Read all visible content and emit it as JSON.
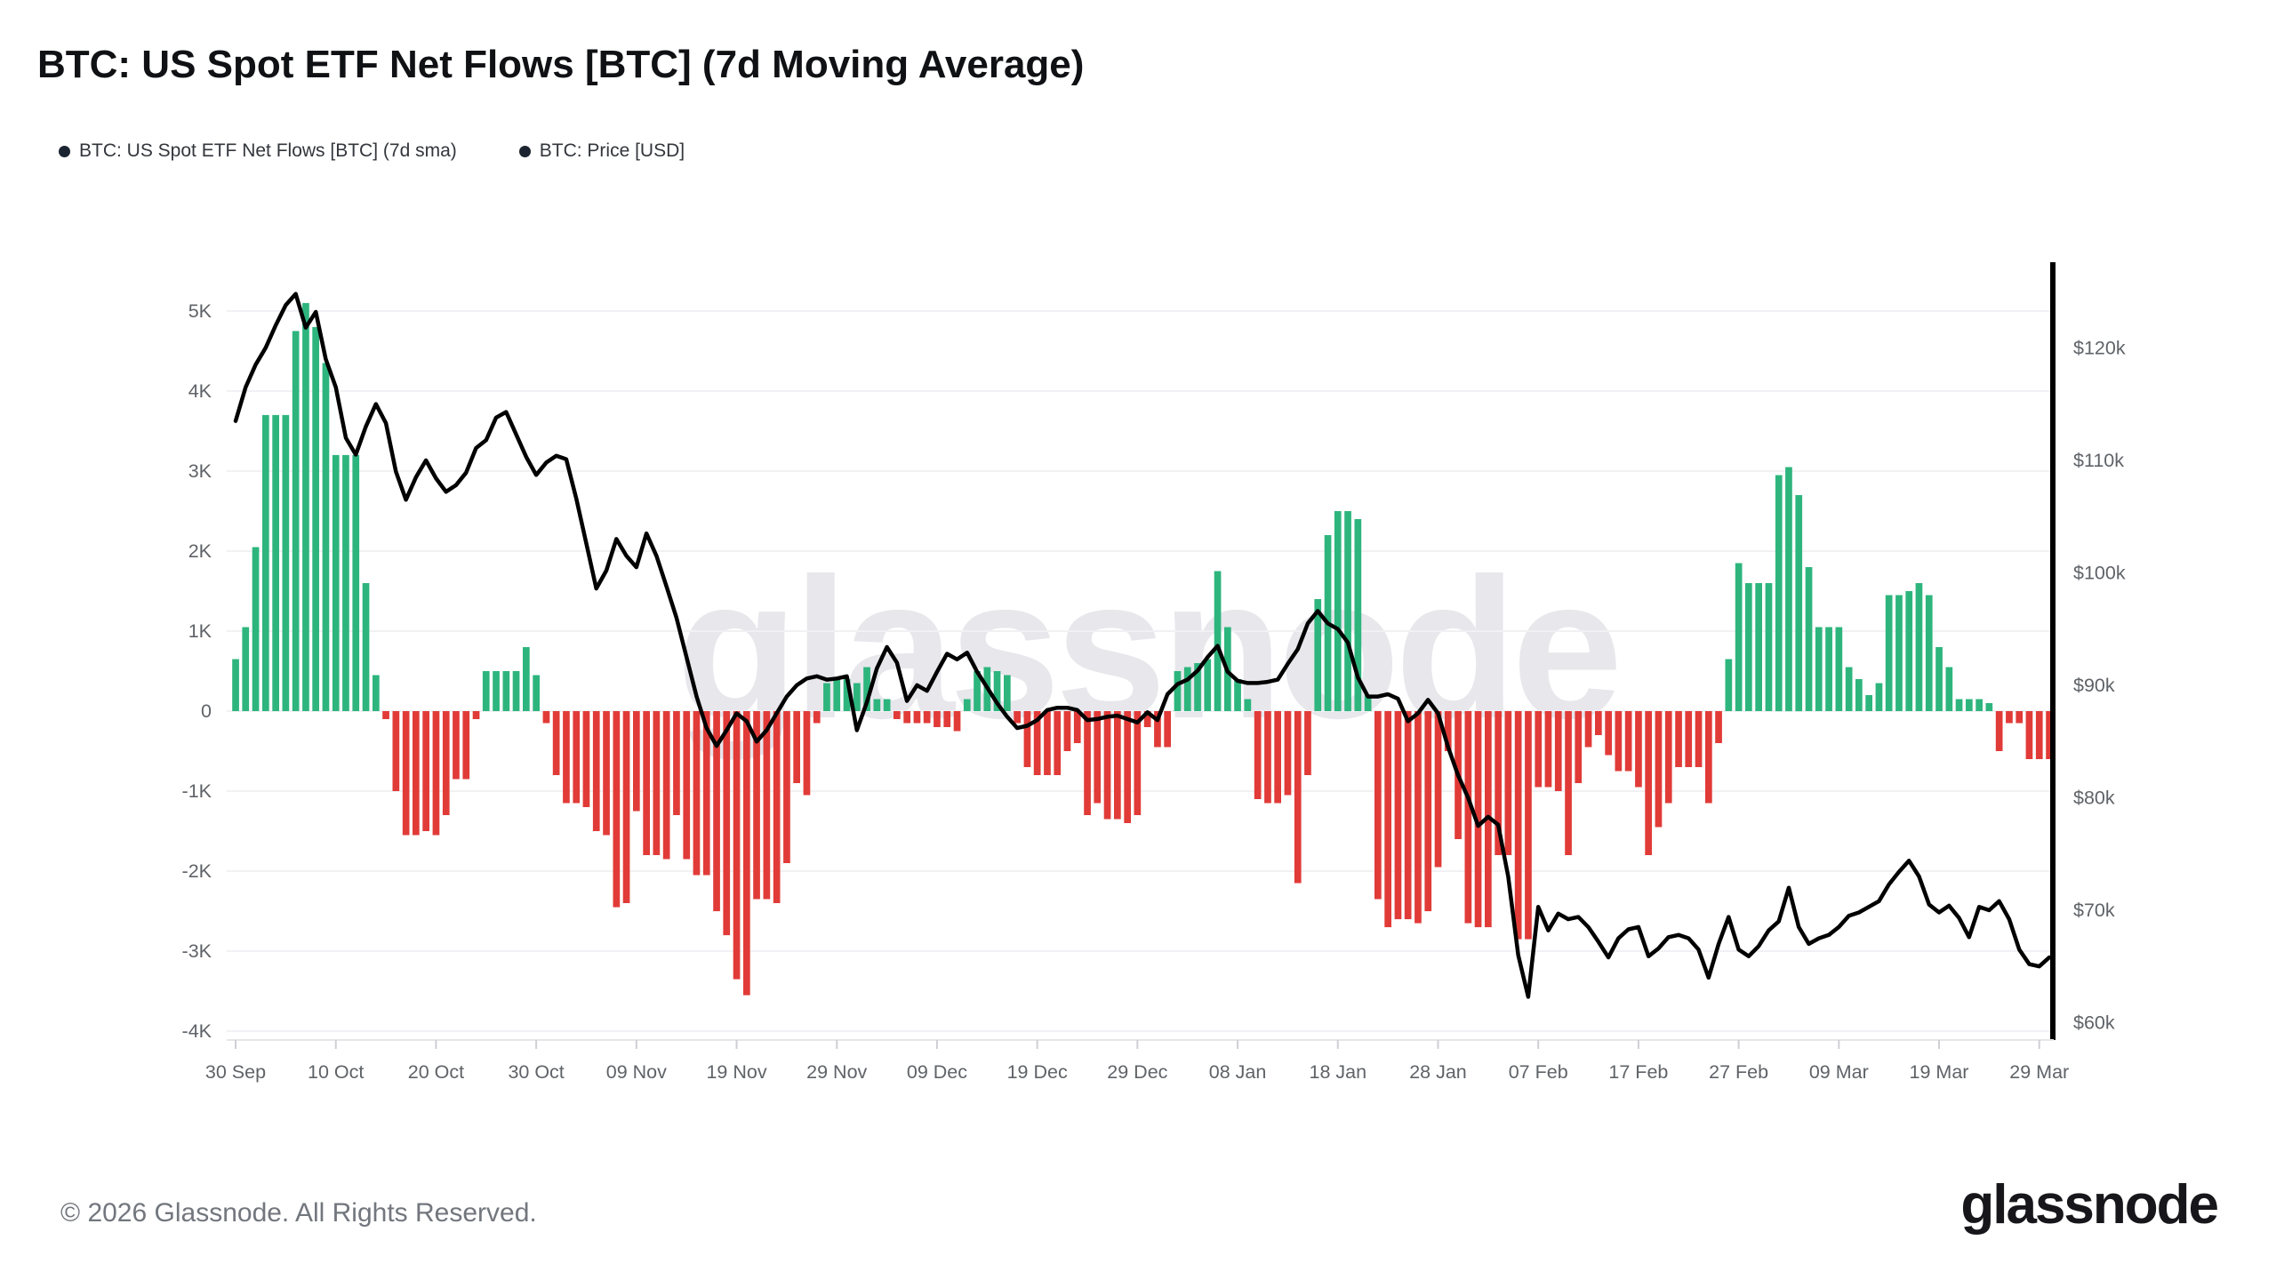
{
  "header": {
    "title": "BTC: US Spot ETF Net Flows [BTC] (7d Moving Average)",
    "legend": [
      {
        "label": "BTC: US Spot ETF Net Flows [BTC] (7d sma)",
        "dot_color": "#1b2430"
      },
      {
        "label": "BTC: Price [USD]",
        "dot_color": "#0d0d0f"
      }
    ]
  },
  "watermark": {
    "text": "glassnode"
  },
  "footer": {
    "copyright": "© 2026 Glassnode. All Rights Reserved.",
    "brand": "glassnode"
  },
  "chart_data": {
    "type": "bar+line",
    "title": "BTC: US Spot ETF Net Flows [BTC] (7d Moving Average)",
    "x_start_label": "30 Sep",
    "x_end_label": "29 Mar",
    "x_tick_labels": [
      "30 Sep",
      "10 Oct",
      "20 Oct",
      "30 Oct",
      "09 Nov",
      "19 Nov",
      "29 Nov",
      "09 Dec",
      "19 Dec",
      "29 Dec",
      "08 Jan",
      "18 Jan",
      "28 Jan",
      "07 Feb",
      "17 Feb",
      "27 Feb",
      "09 Mar",
      "19 Mar",
      "29 Mar"
    ],
    "x_tick_indices": [
      0,
      10,
      20,
      30,
      40,
      50,
      60,
      70,
      80,
      90,
      100,
      110,
      120,
      130,
      140,
      150,
      160,
      170,
      180
    ],
    "left_axis": {
      "tick_labels": [
        "5K",
        "4K",
        "3K",
        "2K",
        "1K",
        "0",
        "-1K",
        "-2K",
        "-3K",
        "-4K"
      ],
      "tick_values": [
        5,
        4,
        3,
        2,
        1,
        0,
        -1,
        -2,
        -3,
        -4
      ],
      "range": [
        -4.11,
        5.61
      ],
      "unit": "K BTC (net flow, 7d sma)"
    },
    "right_axis": {
      "tick_labels": [
        "$120k",
        "$110k",
        "$100k",
        "$90k",
        "$80k",
        "$70k",
        "$60k"
      ],
      "tick_values": [
        120,
        110,
        100,
        90,
        80,
        70,
        60
      ],
      "price_at_zero_flow": 87.7,
      "price_per_flow_unit": 7.115,
      "unit": "USD (thousands)"
    },
    "grid": "horizontal-only",
    "legend_position": "top-left",
    "colors": {
      "positive_bar": "#2db57d",
      "negative_bar": "#e13b38",
      "price_line": "#000000",
      "gridline": "#f1f1f4",
      "axis_text": "#5f6368",
      "axis_line": "#e6e6ea",
      "tick_mark": "#cfcfd4",
      "right_axis_bar": "#000000"
    },
    "series": [
      {
        "name": "BTC: US Spot ETF Net Flows [BTC] (7d sma)",
        "type": "bar",
        "axis": "left",
        "values": [
          0.65,
          1.05,
          2.05,
          3.7,
          3.7,
          3.7,
          4.75,
          5.1,
          4.8,
          4.35,
          3.2,
          3.2,
          3.2,
          1.6,
          0.45,
          -0.1,
          -1.0,
          -1.55,
          -1.55,
          -1.5,
          -1.55,
          -1.3,
          -0.85,
          -0.85,
          -0.1,
          0.5,
          0.5,
          0.5,
          0.5,
          0.8,
          0.45,
          -0.15,
          -0.8,
          -1.15,
          -1.15,
          -1.2,
          -1.5,
          -1.55,
          -2.45,
          -2.4,
          -1.25,
          -1.8,
          -1.8,
          -1.85,
          -1.3,
          -1.85,
          -2.05,
          -2.05,
          -2.5,
          -2.8,
          -3.35,
          -3.55,
          -2.35,
          -2.35,
          -2.4,
          -1.9,
          -0.9,
          -1.05,
          -0.15,
          0.35,
          0.4,
          0.4,
          0.35,
          0.55,
          0.15,
          0.15,
          -0.1,
          -0.15,
          -0.15,
          -0.15,
          -0.2,
          -0.2,
          -0.25,
          0.15,
          0.5,
          0.55,
          0.5,
          0.45,
          -0.15,
          -0.7,
          -0.8,
          -0.8,
          -0.8,
          -0.5,
          -0.4,
          -1.3,
          -1.15,
          -1.35,
          -1.35,
          -1.4,
          -1.3,
          -0.2,
          -0.45,
          -0.45,
          0.5,
          0.55,
          0.6,
          0.65,
          1.75,
          1.05,
          0.4,
          0.15,
          -1.1,
          -1.15,
          -1.15,
          -1.05,
          -2.15,
          -0.8,
          1.4,
          2.2,
          2.5,
          2.5,
          2.4,
          0.2,
          -2.35,
          -2.7,
          -2.6,
          -2.6,
          -2.65,
          -2.5,
          -1.95,
          -0.5,
          -1.6,
          -2.65,
          -2.7,
          -2.7,
          -1.8,
          -1.8,
          -2.85,
          -2.85,
          -0.95,
          -0.95,
          -1.0,
          -1.8,
          -0.9,
          -0.45,
          -0.3,
          -0.55,
          -0.75,
          -0.75,
          -0.95,
          -1.8,
          -1.45,
          -1.15,
          -0.7,
          -0.7,
          -0.7,
          -1.15,
          -0.4,
          0.65,
          1.85,
          1.6,
          1.6,
          1.6,
          2.95,
          3.05,
          2.7,
          1.8,
          1.05,
          1.05,
          1.05,
          0.55,
          0.4,
          0.2,
          0.35,
          1.45,
          1.45,
          1.5,
          1.6,
          1.45,
          0.8,
          0.55,
          0.15,
          0.15,
          0.15,
          0.1,
          -0.5,
          -0.15,
          -0.15,
          -0.6,
          -0.6,
          -0.6
        ]
      },
      {
        "name": "BTC: Price [USD]",
        "type": "line",
        "axis": "right",
        "values": [
          113.5,
          116.5,
          118.5,
          120.0,
          122.0,
          123.8,
          124.8,
          121.8,
          123.2,
          119.0,
          116.5,
          112.0,
          110.5,
          113.0,
          115.0,
          113.3,
          109.0,
          106.5,
          108.5,
          110.0,
          108.4,
          107.2,
          107.8,
          108.9,
          111.1,
          111.8,
          113.8,
          114.3,
          112.3,
          110.3,
          108.7,
          109.8,
          110.4,
          110.1,
          106.6,
          102.6,
          98.6,
          100.2,
          103.0,
          101.5,
          100.5,
          103.5,
          101.5,
          98.8,
          96.0,
          92.5,
          89.0,
          86.2,
          84.6,
          86.0,
          87.5,
          86.8,
          85.0,
          86.0,
          87.5,
          89.0,
          90.0,
          90.6,
          90.8,
          90.5,
          90.6,
          90.8,
          86.0,
          88.5,
          91.5,
          93.4,
          92.0,
          88.6,
          90.0,
          89.5,
          91.2,
          92.8,
          92.3,
          92.9,
          91.2,
          89.8,
          88.4,
          87.2,
          86.2,
          86.4,
          86.9,
          87.8,
          88.0,
          88.0,
          87.8,
          86.9,
          87.0,
          87.2,
          87.3,
          87.0,
          86.7,
          87.6,
          86.9,
          89.2,
          90.1,
          90.5,
          91.3,
          92.5,
          93.5,
          91.2,
          90.4,
          90.2,
          90.2,
          90.3,
          90.5,
          91.9,
          93.2,
          95.5,
          96.6,
          95.5,
          95.0,
          93.8,
          90.7,
          89.0,
          89.0,
          89.2,
          88.8,
          86.8,
          87.5,
          88.7,
          87.5,
          84.5,
          82.0,
          80.0,
          77.5,
          78.3,
          77.6,
          73.0,
          66.0,
          62.3,
          70.3,
          68.2,
          69.7,
          69.2,
          69.4,
          68.5,
          67.2,
          65.8,
          67.5,
          68.3,
          68.5,
          65.9,
          66.6,
          67.6,
          67.8,
          67.5,
          66.5,
          64.0,
          67.0,
          69.4,
          66.5,
          65.9,
          66.8,
          68.2,
          69.0,
          72.0,
          68.5,
          67.0,
          67.5,
          67.8,
          68.5,
          69.5,
          69.8,
          70.3,
          70.8,
          72.3,
          73.4,
          74.4,
          73.0,
          70.5,
          69.8,
          70.4,
          69.3,
          67.6,
          70.3,
          70.0,
          70.8,
          69.2,
          66.5,
          65.2,
          65.0,
          65.8
        ]
      }
    ]
  }
}
